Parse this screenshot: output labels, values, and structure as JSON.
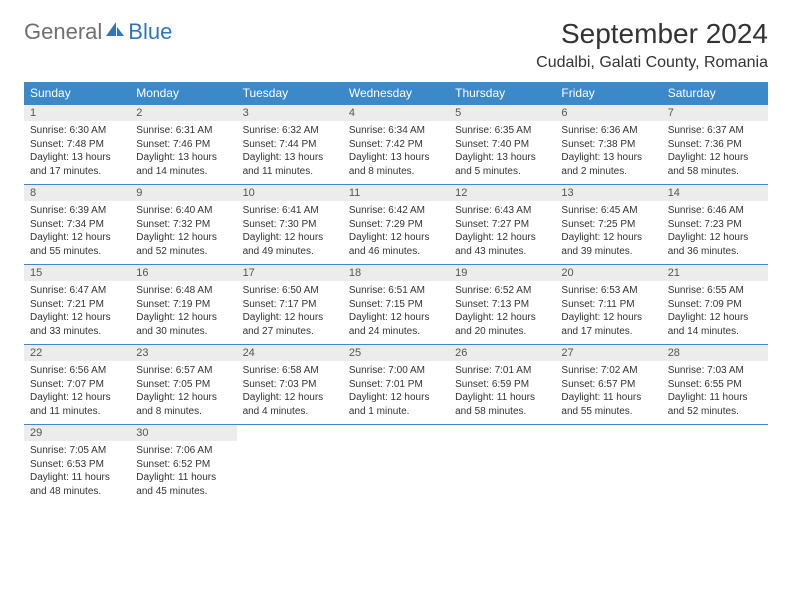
{
  "logo": {
    "general": "General",
    "blue": "Blue"
  },
  "month_title": "September 2024",
  "location": "Cudalbi, Galati County, Romania",
  "colors": {
    "header_bg": "#3b89c9",
    "daynum_bg": "#ececec",
    "border": "#3b89c9",
    "text": "#333333",
    "logo_gray": "#6f6f6f",
    "logo_blue": "#2f77bb"
  },
  "weekdays": [
    "Sunday",
    "Monday",
    "Tuesday",
    "Wednesday",
    "Thursday",
    "Friday",
    "Saturday"
  ],
  "days": [
    {
      "n": "1",
      "sr": "Sunrise: 6:30 AM",
      "ss": "Sunset: 7:48 PM",
      "dl": "Daylight: 13 hours and 17 minutes."
    },
    {
      "n": "2",
      "sr": "Sunrise: 6:31 AM",
      "ss": "Sunset: 7:46 PM",
      "dl": "Daylight: 13 hours and 14 minutes."
    },
    {
      "n": "3",
      "sr": "Sunrise: 6:32 AM",
      "ss": "Sunset: 7:44 PM",
      "dl": "Daylight: 13 hours and 11 minutes."
    },
    {
      "n": "4",
      "sr": "Sunrise: 6:34 AM",
      "ss": "Sunset: 7:42 PM",
      "dl": "Daylight: 13 hours and 8 minutes."
    },
    {
      "n": "5",
      "sr": "Sunrise: 6:35 AM",
      "ss": "Sunset: 7:40 PM",
      "dl": "Daylight: 13 hours and 5 minutes."
    },
    {
      "n": "6",
      "sr": "Sunrise: 6:36 AM",
      "ss": "Sunset: 7:38 PM",
      "dl": "Daylight: 13 hours and 2 minutes."
    },
    {
      "n": "7",
      "sr": "Sunrise: 6:37 AM",
      "ss": "Sunset: 7:36 PM",
      "dl": "Daylight: 12 hours and 58 minutes."
    },
    {
      "n": "8",
      "sr": "Sunrise: 6:39 AM",
      "ss": "Sunset: 7:34 PM",
      "dl": "Daylight: 12 hours and 55 minutes."
    },
    {
      "n": "9",
      "sr": "Sunrise: 6:40 AM",
      "ss": "Sunset: 7:32 PM",
      "dl": "Daylight: 12 hours and 52 minutes."
    },
    {
      "n": "10",
      "sr": "Sunrise: 6:41 AM",
      "ss": "Sunset: 7:30 PM",
      "dl": "Daylight: 12 hours and 49 minutes."
    },
    {
      "n": "11",
      "sr": "Sunrise: 6:42 AM",
      "ss": "Sunset: 7:29 PM",
      "dl": "Daylight: 12 hours and 46 minutes."
    },
    {
      "n": "12",
      "sr": "Sunrise: 6:43 AM",
      "ss": "Sunset: 7:27 PM",
      "dl": "Daylight: 12 hours and 43 minutes."
    },
    {
      "n": "13",
      "sr": "Sunrise: 6:45 AM",
      "ss": "Sunset: 7:25 PM",
      "dl": "Daylight: 12 hours and 39 minutes."
    },
    {
      "n": "14",
      "sr": "Sunrise: 6:46 AM",
      "ss": "Sunset: 7:23 PM",
      "dl": "Daylight: 12 hours and 36 minutes."
    },
    {
      "n": "15",
      "sr": "Sunrise: 6:47 AM",
      "ss": "Sunset: 7:21 PM",
      "dl": "Daylight: 12 hours and 33 minutes."
    },
    {
      "n": "16",
      "sr": "Sunrise: 6:48 AM",
      "ss": "Sunset: 7:19 PM",
      "dl": "Daylight: 12 hours and 30 minutes."
    },
    {
      "n": "17",
      "sr": "Sunrise: 6:50 AM",
      "ss": "Sunset: 7:17 PM",
      "dl": "Daylight: 12 hours and 27 minutes."
    },
    {
      "n": "18",
      "sr": "Sunrise: 6:51 AM",
      "ss": "Sunset: 7:15 PM",
      "dl": "Daylight: 12 hours and 24 minutes."
    },
    {
      "n": "19",
      "sr": "Sunrise: 6:52 AM",
      "ss": "Sunset: 7:13 PM",
      "dl": "Daylight: 12 hours and 20 minutes."
    },
    {
      "n": "20",
      "sr": "Sunrise: 6:53 AM",
      "ss": "Sunset: 7:11 PM",
      "dl": "Daylight: 12 hours and 17 minutes."
    },
    {
      "n": "21",
      "sr": "Sunrise: 6:55 AM",
      "ss": "Sunset: 7:09 PM",
      "dl": "Daylight: 12 hours and 14 minutes."
    },
    {
      "n": "22",
      "sr": "Sunrise: 6:56 AM",
      "ss": "Sunset: 7:07 PM",
      "dl": "Daylight: 12 hours and 11 minutes."
    },
    {
      "n": "23",
      "sr": "Sunrise: 6:57 AM",
      "ss": "Sunset: 7:05 PM",
      "dl": "Daylight: 12 hours and 8 minutes."
    },
    {
      "n": "24",
      "sr": "Sunrise: 6:58 AM",
      "ss": "Sunset: 7:03 PM",
      "dl": "Daylight: 12 hours and 4 minutes."
    },
    {
      "n": "25",
      "sr": "Sunrise: 7:00 AM",
      "ss": "Sunset: 7:01 PM",
      "dl": "Daylight: 12 hours and 1 minute."
    },
    {
      "n": "26",
      "sr": "Sunrise: 7:01 AM",
      "ss": "Sunset: 6:59 PM",
      "dl": "Daylight: 11 hours and 58 minutes."
    },
    {
      "n": "27",
      "sr": "Sunrise: 7:02 AM",
      "ss": "Sunset: 6:57 PM",
      "dl": "Daylight: 11 hours and 55 minutes."
    },
    {
      "n": "28",
      "sr": "Sunrise: 7:03 AM",
      "ss": "Sunset: 6:55 PM",
      "dl": "Daylight: 11 hours and 52 minutes."
    },
    {
      "n": "29",
      "sr": "Sunrise: 7:05 AM",
      "ss": "Sunset: 6:53 PM",
      "dl": "Daylight: 11 hours and 48 minutes."
    },
    {
      "n": "30",
      "sr": "Sunrise: 7:06 AM",
      "ss": "Sunset: 6:52 PM",
      "dl": "Daylight: 11 hours and 45 minutes."
    }
  ],
  "layout": {
    "start_weekday": 0,
    "total_cells": 35
  }
}
